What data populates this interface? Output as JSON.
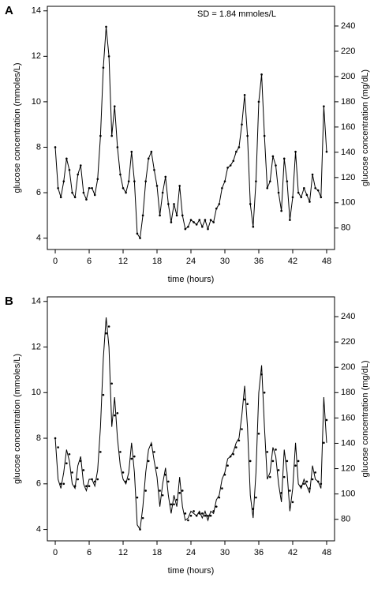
{
  "chart_data": [
    {
      "type": "line",
      "panel_label": "A",
      "title": "SD = 1.84  mmoles/L",
      "xlabel": "time (hours)",
      "ylabel": "glucose concentration (mmoles/L)",
      "y2label": "glucose concentration (mg/dL)",
      "x": [
        0,
        0.5,
        1,
        1.5,
        2,
        2.5,
        3,
        3.5,
        4,
        4.5,
        5,
        5.5,
        6,
        6.5,
        7,
        7.5,
        8,
        8.5,
        9,
        9.5,
        10,
        10.5,
        11,
        11.5,
        12,
        12.5,
        13,
        13.5,
        14,
        14.5,
        15,
        15.5,
        16,
        16.5,
        17,
        17.5,
        18,
        18.5,
        19,
        19.5,
        20,
        20.5,
        21,
        21.5,
        22,
        22.5,
        23,
        23.5,
        24,
        24.5,
        25,
        25.5,
        26,
        26.5,
        27,
        27.5,
        28,
        28.5,
        29,
        29.5,
        30,
        30.5,
        31,
        31.5,
        32,
        32.5,
        33,
        33.5,
        34,
        34.5,
        35,
        35.5,
        36,
        36.5,
        37,
        37.5,
        38,
        38.5,
        39,
        39.5,
        40,
        40.5,
        41,
        41.5,
        42,
        42.5,
        43,
        43.5,
        44,
        44.5,
        45,
        45.5,
        46,
        46.5,
        47,
        47.5,
        48
      ],
      "xlim": [
        -1.4,
        49.4
      ],
      "xticks": [
        0,
        6,
        12,
        18,
        24,
        30,
        36,
        42,
        48
      ],
      "ylim": [
        3.5,
        14.2
      ],
      "yticks": [
        4,
        6,
        8,
        10,
        12,
        14
      ],
      "y2lim": [
        63,
        255.6
      ],
      "y2ticks": [
        80,
        100,
        120,
        140,
        160,
        180,
        200,
        220,
        240
      ],
      "series": [
        {
          "style": "line-points",
          "color": "#000000",
          "values": [
            8.0,
            6.2,
            5.8,
            6.5,
            7.5,
            7.0,
            6.0,
            5.8,
            6.8,
            7.2,
            6.0,
            5.7,
            6.2,
            6.2,
            5.9,
            6.6,
            8.5,
            11.5,
            13.3,
            12.0,
            8.5,
            9.8,
            8.0,
            6.8,
            6.2,
            6.0,
            6.5,
            7.8,
            6.5,
            4.2,
            4.0,
            5.0,
            6.5,
            7.5,
            7.8,
            7.0,
            6.3,
            5.0,
            6.0,
            6.7,
            5.5,
            4.7,
            5.5,
            5.0,
            6.3,
            5.0,
            4.4,
            4.5,
            4.8,
            4.7,
            4.6,
            4.8,
            4.5,
            4.8,
            4.4,
            4.8,
            4.7,
            5.3,
            5.5,
            6.2,
            6.5,
            7.1,
            7.2,
            7.4,
            7.8,
            8.0,
            9.0,
            10.3,
            8.5,
            5.5,
            4.5,
            6.5,
            10.0,
            11.2,
            8.5,
            6.2,
            6.5,
            7.6,
            7.2,
            6.0,
            5.2,
            7.5,
            6.5,
            4.8,
            5.8,
            7.8,
            6.0,
            5.8,
            6.2,
            5.9,
            5.6,
            6.8,
            6.2,
            6.1,
            5.8,
            9.8,
            7.8
          ]
        }
      ]
    },
    {
      "type": "line",
      "panel_label": "B",
      "xlabel": "time (hours)",
      "ylabel": "glucose concentration (mmoles/L)",
      "y2label": "glucose concentration (mg/dL)",
      "x": [
        0,
        0.5,
        1,
        1.5,
        2,
        2.5,
        3,
        3.5,
        4,
        4.5,
        5,
        5.5,
        6,
        6.5,
        7,
        7.5,
        8,
        8.5,
        9,
        9.5,
        10,
        10.5,
        11,
        11.5,
        12,
        12.5,
        13,
        13.5,
        14,
        14.5,
        15,
        15.5,
        16,
        16.5,
        17,
        17.5,
        18,
        18.5,
        19,
        19.5,
        20,
        20.5,
        21,
        21.5,
        22,
        22.5,
        23,
        23.5,
        24,
        24.5,
        25,
        25.5,
        26,
        26.5,
        27,
        27.5,
        28,
        28.5,
        29,
        29.5,
        30,
        30.5,
        31,
        31.5,
        32,
        32.5,
        33,
        33.5,
        34,
        34.5,
        35,
        35.5,
        36,
        36.5,
        37,
        37.5,
        38,
        38.5,
        39,
        39.5,
        40,
        40.5,
        41,
        41.5,
        42,
        42.5,
        43,
        43.5,
        44,
        44.5,
        45,
        45.5,
        46,
        46.5,
        47,
        47.5,
        48
      ],
      "xlim": [
        -1.4,
        49.4
      ],
      "xticks": [
        0,
        6,
        12,
        18,
        24,
        30,
        36,
        42,
        48
      ],
      "ylim": [
        3.5,
        14.2
      ],
      "yticks": [
        4,
        6,
        8,
        10,
        12,
        14
      ],
      "y2lim": [
        63,
        255.6
      ],
      "y2ticks": [
        80,
        100,
        120,
        140,
        160,
        180,
        200,
        220,
        240
      ],
      "series": [
        {
          "style": "line",
          "color": "#000000",
          "values": [
            8.0,
            6.2,
            5.8,
            6.5,
            7.5,
            7.0,
            6.0,
            5.8,
            6.8,
            7.2,
            6.0,
            5.7,
            6.2,
            6.2,
            5.9,
            6.6,
            8.5,
            11.5,
            13.3,
            12.0,
            8.5,
            9.8,
            8.0,
            6.8,
            6.2,
            6.0,
            6.5,
            7.8,
            6.5,
            4.2,
            4.0,
            5.0,
            6.5,
            7.5,
            7.8,
            7.0,
            6.3,
            5.0,
            6.0,
            6.7,
            5.5,
            4.7,
            5.5,
            5.0,
            6.3,
            5.0,
            4.4,
            4.5,
            4.8,
            4.7,
            4.6,
            4.8,
            4.5,
            4.8,
            4.4,
            4.8,
            4.7,
            5.3,
            5.5,
            6.2,
            6.5,
            7.1,
            7.2,
            7.4,
            7.8,
            8.0,
            9.0,
            10.3,
            8.5,
            5.5,
            4.5,
            6.5,
            10.0,
            11.2,
            8.5,
            6.2,
            6.5,
            7.6,
            7.2,
            6.0,
            5.2,
            7.5,
            6.5,
            4.8,
            5.8,
            7.8,
            6.0,
            5.8,
            6.2,
            5.9,
            5.6,
            6.8,
            6.2,
            6.1,
            5.8,
            9.8,
            7.8
          ]
        },
        {
          "style": "points",
          "color": "#000000",
          "values": [
            8.0,
            7.6,
            6.0,
            6.0,
            6.9,
            7.3,
            6.5,
            5.9,
            6.2,
            7.0,
            6.6,
            5.9,
            5.9,
            6.2,
            6.1,
            6.2,
            7.4,
            9.9,
            12.6,
            12.9,
            10.4,
            9.0,
            9.1,
            7.4,
            6.5,
            6.1,
            6.2,
            7.1,
            7.2,
            5.4,
            4.0,
            4.5,
            5.7,
            7.0,
            7.7,
            7.4,
            6.7,
            5.7,
            5.5,
            6.4,
            6.1,
            5.1,
            5.1,
            5.3,
            5.6,
            5.7,
            4.7,
            4.4,
            4.6,
            4.8,
            4.6,
            4.7,
            4.7,
            4.6,
            4.6,
            4.6,
            4.8,
            5.0,
            5.4,
            5.8,
            6.4,
            6.8,
            7.2,
            7.3,
            7.6,
            7.9,
            8.4,
            9.7,
            9.5,
            7.0,
            4.9,
            5.4,
            8.2,
            10.8,
            10.0,
            7.4,
            6.3,
            7.0,
            7.5,
            6.6,
            5.6,
            6.3,
            7.0,
            5.7,
            5.2,
            6.8,
            7.0,
            5.9,
            6.0,
            6.1,
            5.8,
            6.2,
            6.5,
            6.1,
            6.0,
            7.8,
            8.8
          ]
        }
      ]
    }
  ]
}
